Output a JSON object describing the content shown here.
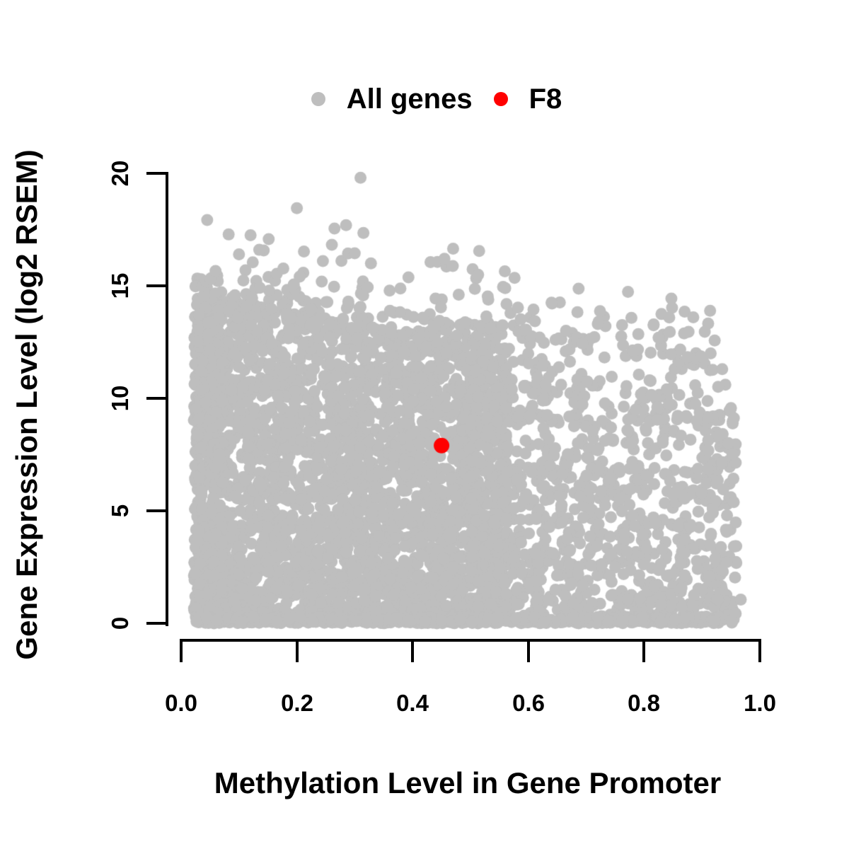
{
  "figure": {
    "background": "#FFFFFF",
    "text_color": "#000000"
  },
  "legend": {
    "position": "top",
    "items": [
      {
        "label": "All genes",
        "color": "#BEBEBE"
      },
      {
        "label": "F8",
        "color": "#FF0000"
      }
    ]
  },
  "axes": {
    "x": {
      "label": "Methylation Level in Gene Promoter",
      "ticks": [
        "0.0",
        "0.2",
        "0.4",
        "0.6",
        "0.8",
        "1.0"
      ]
    },
    "y": {
      "label": "Gene Expression Level (log2 RSEM)",
      "ticks": [
        "0",
        "5",
        "10",
        "15",
        "20"
      ]
    }
  },
  "chart_data": {
    "type": "scatter",
    "title": "",
    "xlabel": "Methylation Level in Gene Promoter",
    "ylabel": "Gene Expression Level (log2 RSEM)",
    "xlim": [
      0,
      1
    ],
    "ylim": [
      0,
      20
    ],
    "x_ticks": [
      0,
      0.2,
      0.4,
      0.6,
      0.8,
      1.0
    ],
    "y_ticks": [
      0,
      5,
      10,
      15,
      20
    ],
    "grid": false,
    "legend_position": "top",
    "series": [
      {
        "name": "All genes",
        "color": "#BEBEBE",
        "marker": "filled-circle",
        "marker_radius_px": 8.5,
        "description": "Dense cloud of ~5000 visible gene points spanning methylation 0.02-0.95; expression fills 0 up to an upper envelope that declines from ~15.4 at methylation 0 to ~11.5 at 0.95; cloud is solid for methylation < 0.5 and progressively sparser toward 0.95; sparse scatter above envelope up to ~19.8",
        "envelope_poly": [
          15.4,
          -5.4,
          1.3
        ],
        "generator": {
          "seed": 42,
          "components": [
            {
              "type": "env",
              "n": 2950,
              "x_min": 0.022,
              "x_span": 0.54,
              "x_pow": 0.97,
              "y_pow": 1.18,
              "env_offset": -0.2,
              "env_jitter": 1.2
            },
            {
              "type": "env",
              "n": 260,
              "x_min": 0.022,
              "x_span": 0.05,
              "x_pow": 1.0,
              "y_pow": 1.05,
              "env_offset": 0.1,
              "env_jitter": 0.8
            },
            {
              "type": "env",
              "n": 1150,
              "x_min": 0.5,
              "x_span": 0.46,
              "x_pow": 1.25,
              "y_pow": 1.32,
              "env_offset": -0.6,
              "env_jitter": 1.6
            },
            {
              "type": "band",
              "n": 430,
              "x_min": 0.025,
              "x_span": 0.905,
              "x_pow": 1.15,
              "y_min": 0,
              "y_span": 0.3
            },
            {
              "type": "tail",
              "n": 150,
              "x_min": 0.04,
              "x_span": 0.89,
              "x_pow": 0.85,
              "height": 2.8,
              "h_pow": 2.7
            }
          ]
        },
        "outlier_points": [
          [
            0.31,
            19.8
          ],
          [
            0.2,
            18.45
          ],
          [
            0.265,
            17.55
          ],
          [
            0.285,
            17.7
          ],
          [
            0.12,
            17.25
          ],
          [
            0.315,
            17.35
          ],
          [
            0.135,
            16.6
          ],
          [
            0.1,
            16.4
          ],
          [
            0.3,
            16.45
          ],
          [
            0.245,
            16.1
          ],
          [
            0.47,
            16.65
          ],
          [
            0.515,
            16.55
          ],
          [
            0.455,
            16.2
          ],
          [
            0.56,
            14.9
          ],
          [
            0.64,
            14.25
          ],
          [
            0.87,
            13.85
          ],
          [
            0.885,
            13.6
          ],
          [
            0.72,
            13.3
          ],
          [
            0.665,
            13.0
          ],
          [
            0.79,
            12.85
          ],
          [
            0.825,
            12.7
          ],
          [
            0.915,
            12.0
          ],
          [
            0.935,
            11.3
          ],
          [
            0.967,
            1.05
          ]
        ]
      },
      {
        "name": "F8",
        "color": "#FF0000",
        "marker": "filled-circle",
        "marker_radius_px": 11,
        "points": [
          [
            0.45,
            7.9
          ]
        ]
      }
    ]
  }
}
